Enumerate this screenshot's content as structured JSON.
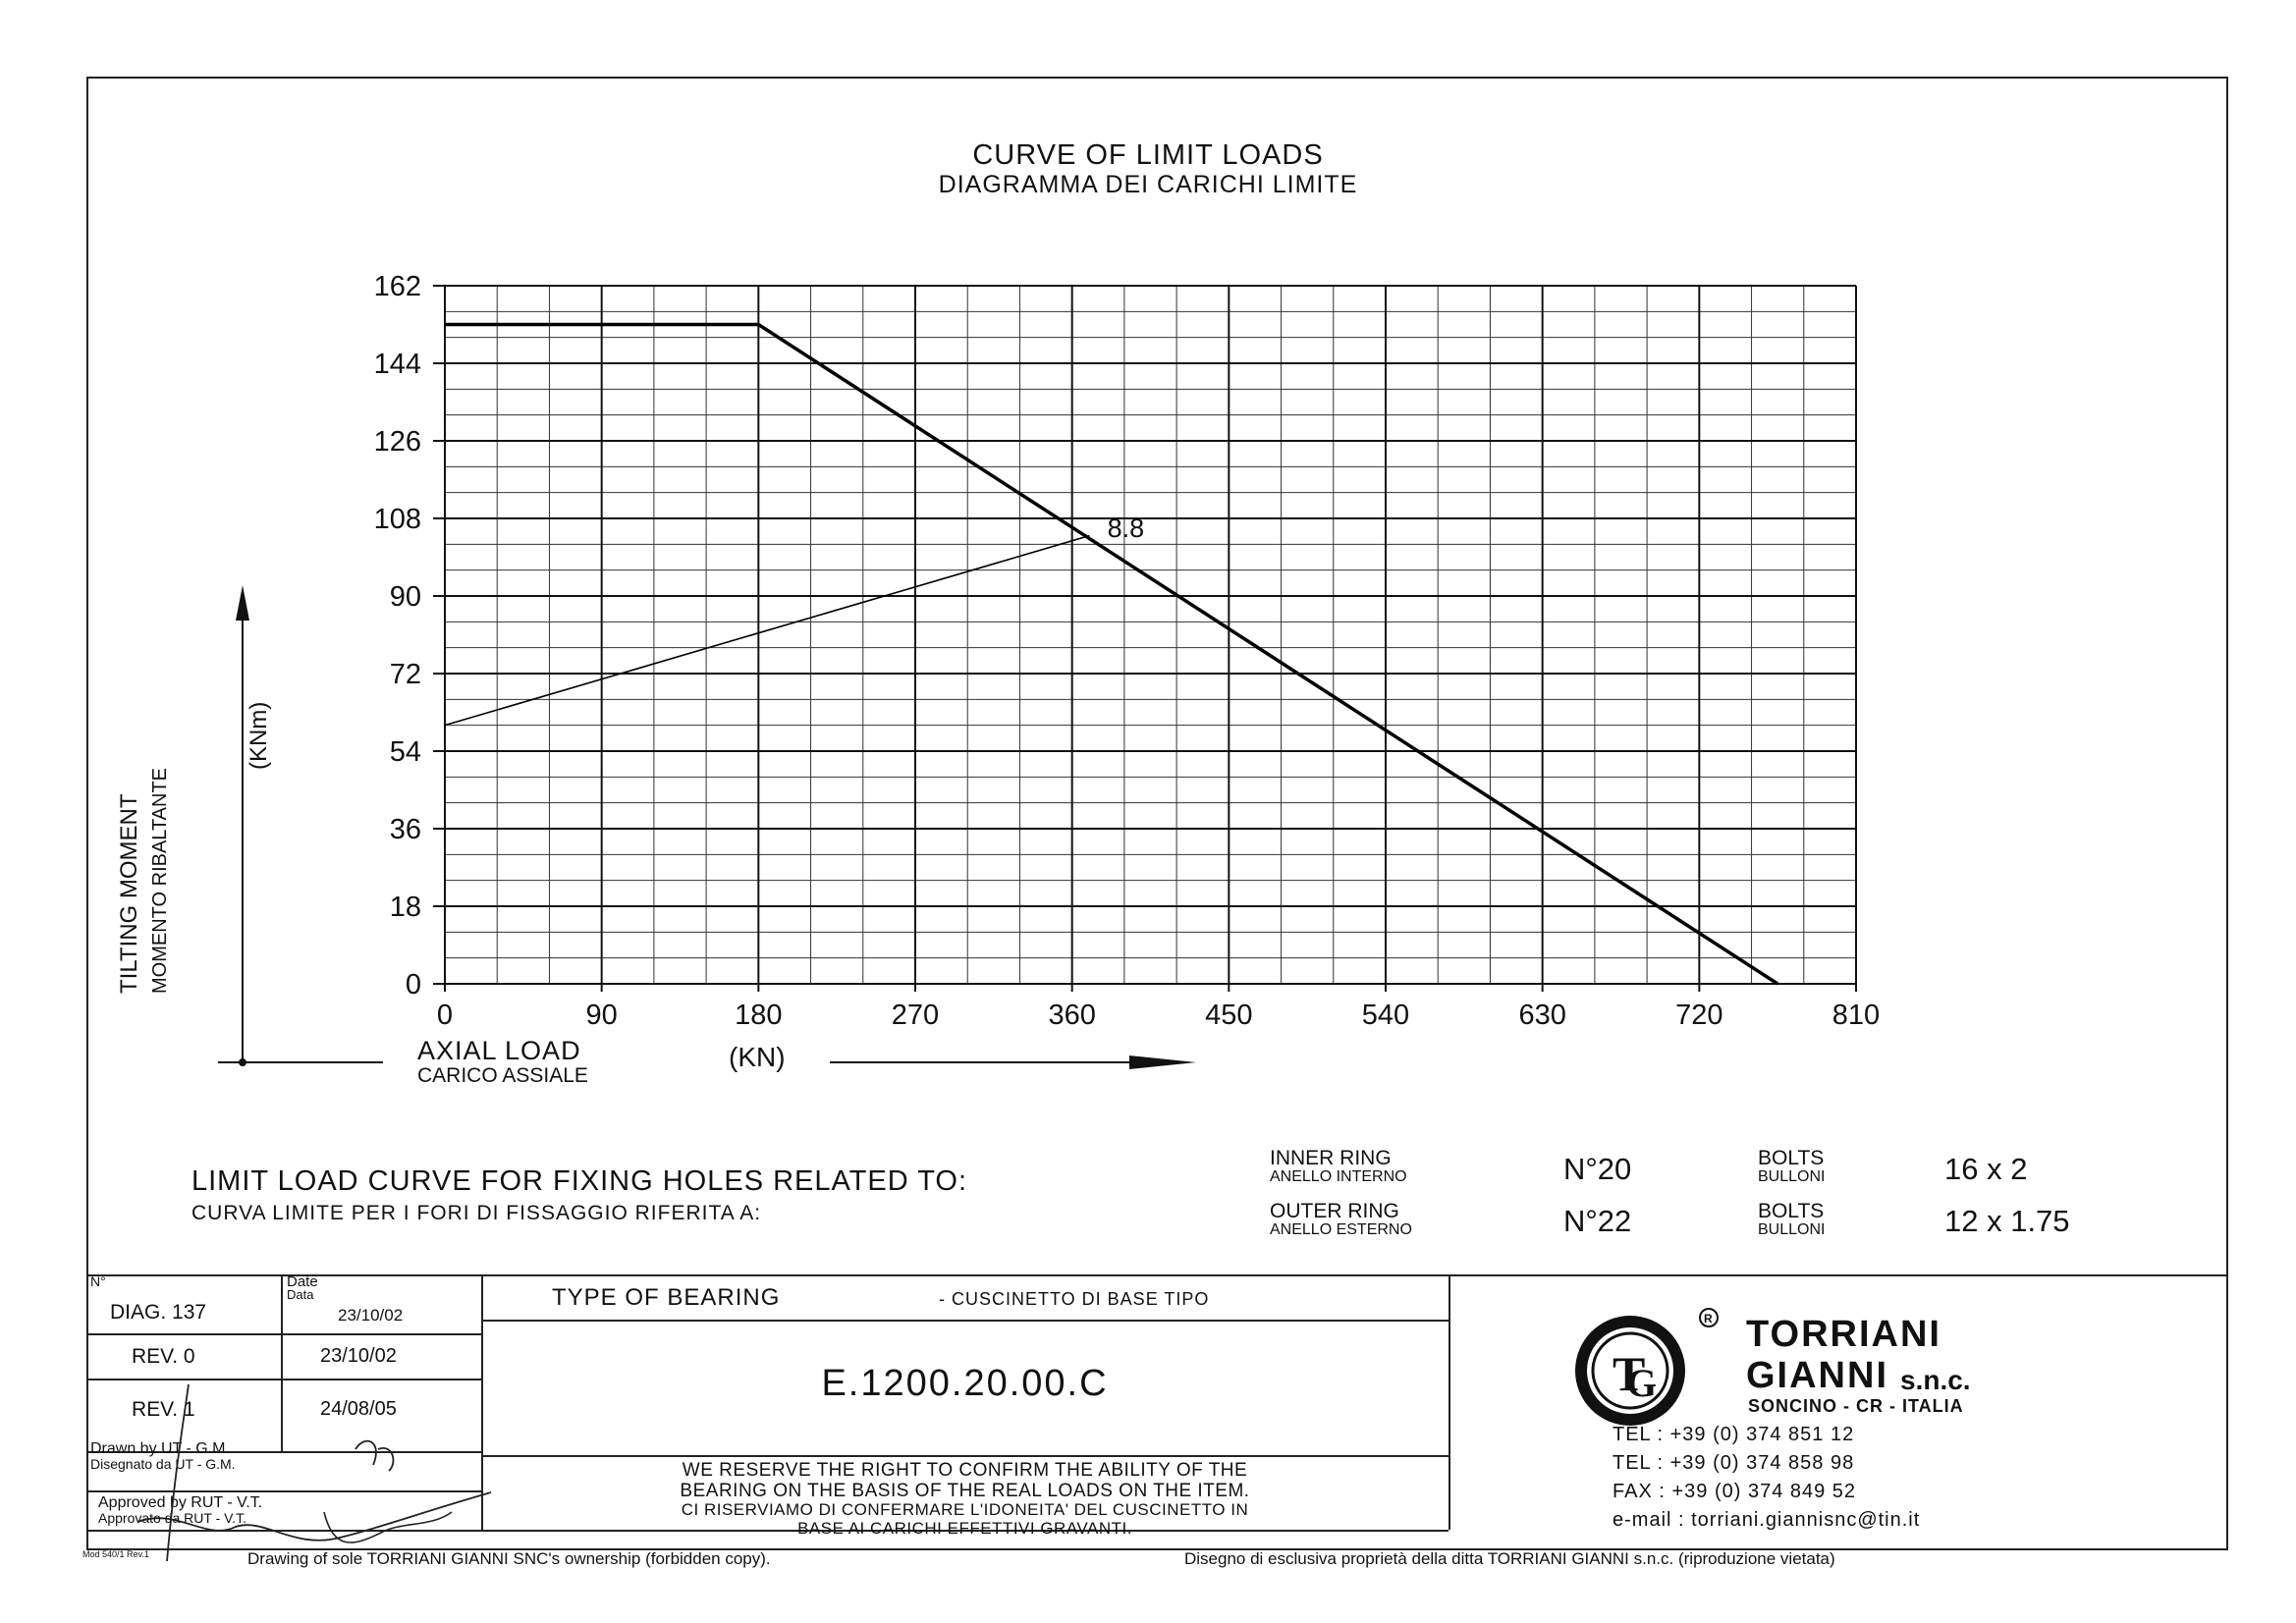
{
  "chart_data": {
    "type": "line",
    "title": "CURVE OF LIMIT LOADS",
    "subtitle": "DIAGRAMMA DEI CARICHI LIMITE",
    "xlabel": "AXIAL LOAD",
    "xlabel_sub": "CARICO ASSIALE",
    "xunit": "(KN)",
    "ylabel": "TILTING MOMENT",
    "ylabel_sub": "MOMENTO RIBALTANTE",
    "yunit": "(KNm)",
    "xlim": [
      0,
      810
    ],
    "ylim": [
      0,
      162
    ],
    "xticks": [
      0,
      90,
      180,
      270,
      360,
      450,
      540,
      630,
      720,
      810
    ],
    "yticks": [
      0,
      18,
      36,
      54,
      72,
      90,
      108,
      126,
      144,
      162
    ],
    "grid": true,
    "series": [
      {
        "name": "",
        "x": [
          0,
          180,
          765
        ],
        "y": [
          153,
          153,
          0
        ]
      },
      {
        "name": "8.8",
        "x": [
          0,
          370
        ],
        "y": [
          60,
          104
        ]
      }
    ],
    "annotations": [
      {
        "text": "8.8",
        "x": 378,
        "y": 106
      }
    ]
  },
  "fixing": {
    "title": "LIMIT LOAD CURVE FOR FIXING HOLES RELATED TO:",
    "subtitle": "CURVA LIMITE PER I FORI DI FISSAGGIO RIFERITA A:",
    "inner_label": "INNER RING",
    "inner_label_sub": "ANELLO INTERNO",
    "inner_n": "N°20",
    "outer_label": "OUTER RING",
    "outer_label_sub": "ANELLO ESTERNO",
    "outer_n": "N°22",
    "bolts_label": "BOLTS",
    "bolts_label_sub": "BULLONI",
    "inner_bolts": "16 x 2",
    "outer_bolts": "12 x 1.75"
  },
  "titleblock": {
    "n_label": "N°",
    "date_label": "Date",
    "date_label_sub": "Data",
    "diag": "DIAG. 137",
    "diag_date": "23/10/02",
    "rev0": "REV. 0",
    "rev0_date": "23/10/02",
    "rev1": "REV. 1",
    "rev1_date": "24/08/05",
    "drawn_by": "Drawn by UT - G.M.",
    "drawn_by_sub": "Disegnato da UT - G.M.",
    "approved_by": "Approved by RUT - V.T.",
    "approved_by_sub": "Approvato da RUT - V.T.",
    "mod": "Mod 540/1 Rev.1",
    "type_label": "TYPE OF BEARING",
    "type_label_sub": "- CUSCINETTO DI BASE TIPO",
    "code": "E.1200.20.00.C",
    "reserve_1": "WE RESERVE THE RIGHT TO CONFIRM THE ABILITY OF THE",
    "reserve_2": "BEARING ON THE BASIS OF THE REAL LOADS ON THE ITEM.",
    "reserve_3": "CI RISERVIAMO DI CONFERMARE L'IDONEITA' DEL CUSCINETTO IN",
    "reserve_4": "BASE AI CARICHI EFFETTIVI GRAVANTI.",
    "company_1": "TORRIANI",
    "company_2": "GIANNI",
    "company_suffix": "s.n.c.",
    "location": "SONCINO - CR - ITALIA",
    "tel1": "TEL : +39 (0) 374 851 12",
    "tel2": "TEL : +39 (0) 374 858 98",
    "fax": "FAX : +39 (0) 374 849 52",
    "email": "e-mail : torriani.giannisnc@tin.it",
    "footer_left": "Drawing of sole TORRIANI GIANNI SNC's ownership (forbidden copy).",
    "footer_right": "Disegno di esclusiva proprietà della ditta TORRIANI GIANNI s.n.c. (riproduzione vietata)"
  },
  "colors": {
    "ink": "#111111",
    "grid": "#222222"
  }
}
